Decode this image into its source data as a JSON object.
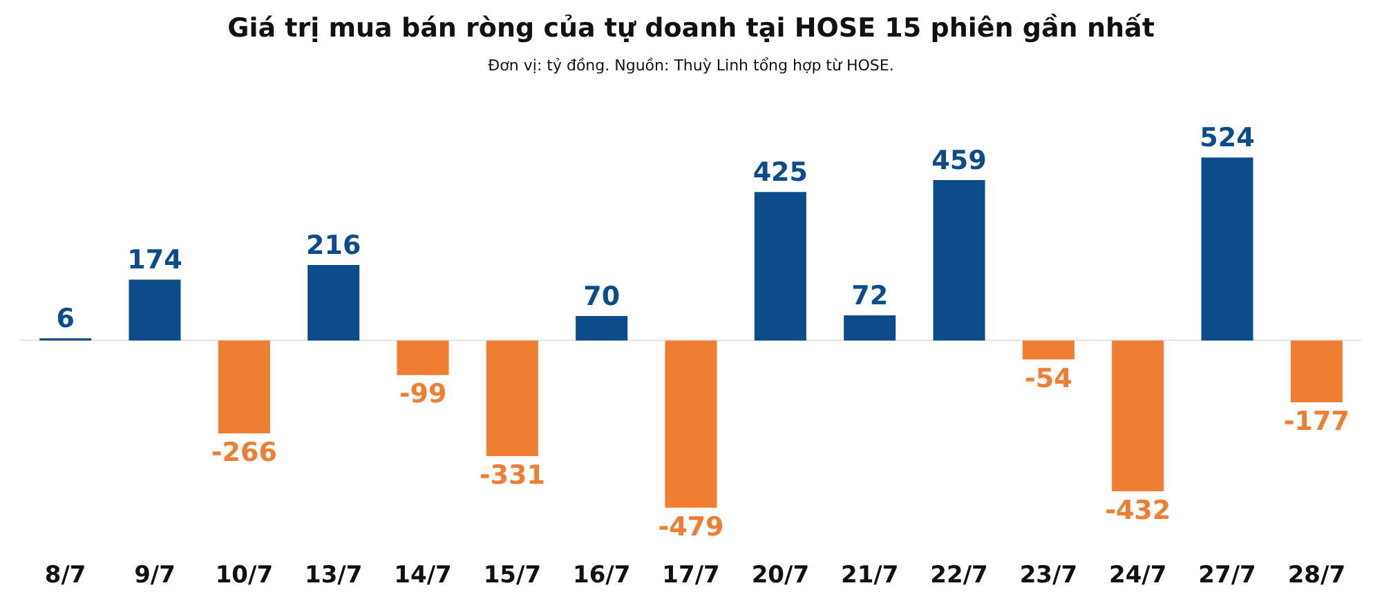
{
  "chart_data": {
    "type": "bar",
    "title": "Giá trị mua bán ròng của tự doanh tại HOSE 15 phiên gần nhất",
    "subtitle": "Đơn vị: tỷ đồng. Nguồn: Thuỳ Linh tổng hợp từ HOSE.",
    "categories": [
      "8/7",
      "9/7",
      "10/7",
      "13/7",
      "14/7",
      "15/7",
      "16/7",
      "17/7",
      "20/7",
      "21/7",
      "22/7",
      "23/7",
      "24/7",
      "27/7",
      "28/7"
    ],
    "values": [
      6,
      174,
      -266,
      216,
      -99,
      -331,
      70,
      -479,
      425,
      72,
      459,
      -54,
      -432,
      524,
      -177
    ],
    "colors": [
      "#0d4c8b",
      "#0d4c8b",
      "#ef7d32",
      "#0d4c8b",
      "#ef7d32",
      "#ef7d32",
      "#0d4c8b",
      "#ef7d32",
      "#0d4c8b",
      "#0d4c8b",
      "#0d4c8b",
      "#ef7d32",
      "#ef7d32",
      "#0d4c8b",
      "#ef7d32"
    ],
    "data_labels": true,
    "tick_labels": "x"
  }
}
